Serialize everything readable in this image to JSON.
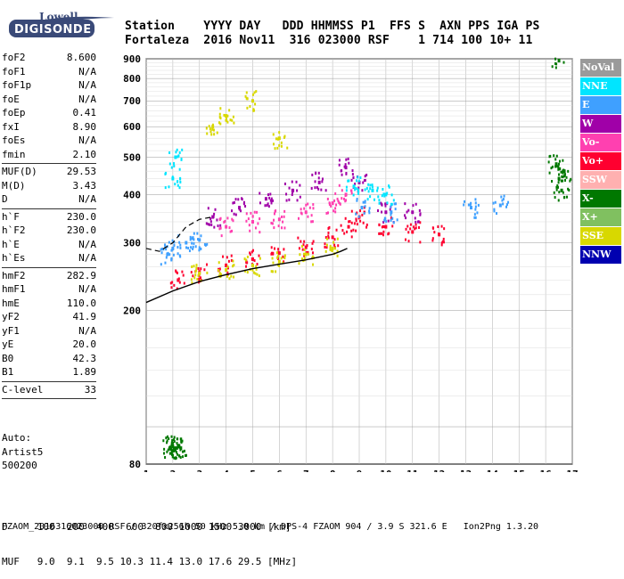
{
  "logo": {
    "line1": "Lowell",
    "line2": "DIGISONDE"
  },
  "header": {
    "labels": "Station    YYYY DAY   DDD HHMMSS P1  FFS S  AXN PPS IGA PS",
    "values": "Fortaleza  2016 Nov11  316 023000 RSF    1 714 100 10+ 11"
  },
  "params": {
    "group1": [
      {
        "name": "foF2",
        "value": "8.600"
      },
      {
        "name": "foF1",
        "value": "N/A"
      },
      {
        "name": "foF1p",
        "value": "N/A"
      },
      {
        "name": "foE",
        "value": "N/A"
      },
      {
        "name": "foEp",
        "value": "0.41"
      },
      {
        "name": "fxI",
        "value": "8.90"
      },
      {
        "name": "foEs",
        "value": "N/A"
      },
      {
        "name": "fmin",
        "value": "2.10"
      }
    ],
    "group2": [
      {
        "name": "MUF(D)",
        "value": "29.53"
      },
      {
        "name": "M(D)",
        "value": "3.43"
      },
      {
        "name": "D",
        "value": "N/A"
      }
    ],
    "group3": [
      {
        "name": "h`F",
        "value": "230.0"
      },
      {
        "name": "h`F2",
        "value": "230.0"
      },
      {
        "name": "h`E",
        "value": "N/A"
      },
      {
        "name": "h`Es",
        "value": "N/A"
      }
    ],
    "group4": [
      {
        "name": "hmF2",
        "value": "282.9"
      },
      {
        "name": "hmF1",
        "value": "N/A"
      },
      {
        "name": "hmE",
        "value": "110.0"
      },
      {
        "name": "yF2",
        "value": "41.9"
      },
      {
        "name": "yF1",
        "value": "N/A"
      },
      {
        "name": "yE",
        "value": "20.0"
      },
      {
        "name": "B0",
        "value": "42.3"
      },
      {
        "name": "B1",
        "value": "1.89"
      }
    ],
    "group5": [
      {
        "name": "C-level",
        "value": "33"
      }
    ]
  },
  "auto": {
    "line1": "Auto:",
    "line2": "Artist5",
    "line3": "500200"
  },
  "legend": [
    {
      "label": "NoVal",
      "color": "#9a9a9a"
    },
    {
      "label": "NNE",
      "color": "#00e5ff"
    },
    {
      "label": "E",
      "color": "#3fa0ff"
    },
    {
      "label": "W",
      "color": "#a000a8"
    },
    {
      "label": "Vo-",
      "color": "#ff40b0"
    },
    {
      "label": "Vo+",
      "color": "#ff0030"
    },
    {
      "label": "SSW",
      "color": "#ffb0b0"
    },
    {
      "label": "X-",
      "color": "#007800"
    },
    {
      "label": "X+",
      "color": "#80c060"
    },
    {
      "label": "SSE",
      "color": "#d8d800"
    },
    {
      "label": "NNW",
      "color": "#0000b0"
    }
  ],
  "bottom": {
    "d_row": "D     100  200  400  600  800 1000 1500 3000 [km]",
    "muf_row": "MUF   9.0  9.1  9.5 10.3 11.4 13.0 17.6 29.5 [MHz]"
  },
  "footer": "FZAOM_2016316023000.RSF / 320fx256h 50 kHz 5.0 km / DPS-4 FZAOM 904 / 3.9 S 321.6 E   Ion2Png 1.3.20",
  "chart_data": {
    "type": "scatter",
    "title": "",
    "xlabel": "",
    "ylabel": "",
    "xlim": [
      1,
      17
    ],
    "ylim": [
      80,
      900
    ],
    "y_scale": "log",
    "grid": true,
    "legend_position": "right",
    "x_ticks": [
      1,
      2,
      3,
      4,
      5,
      6,
      7,
      8,
      9,
      10,
      11,
      12,
      13,
      14,
      15,
      16,
      17
    ],
    "y_ticks": [
      80,
      200,
      300,
      400,
      500,
      600,
      700,
      800,
      900
    ],
    "series": [
      {
        "name": "X-",
        "color": "#007800",
        "points": [
          [
            1.9,
            88
          ],
          [
            2.0,
            89
          ],
          [
            2.1,
            88
          ],
          [
            2.2,
            89
          ],
          [
            2.3,
            88
          ],
          [
            16.4,
            480
          ],
          [
            16.5,
            440
          ],
          [
            16.6,
            410
          ],
          [
            16.7,
            460
          ],
          [
            16.5,
            890
          ]
        ]
      },
      {
        "name": "Vo+",
        "color": "#ff0030",
        "points": [
          [
            2.2,
            240
          ],
          [
            3.0,
            252
          ],
          [
            4.0,
            262
          ],
          [
            5.0,
            272
          ],
          [
            6.0,
            282
          ],
          [
            7.0,
            292
          ],
          [
            8.0,
            310
          ],
          [
            8.6,
            330
          ],
          [
            9.0,
            350
          ],
          [
            10.0,
            330
          ],
          [
            11.0,
            320
          ],
          [
            12.0,
            315
          ]
        ]
      },
      {
        "name": "W",
        "color": "#a000a8",
        "points": [
          [
            3.5,
            350
          ],
          [
            4.5,
            370
          ],
          [
            5.5,
            390
          ],
          [
            6.5,
            410
          ],
          [
            7.5,
            430
          ],
          [
            8.5,
            470
          ],
          [
            9.0,
            430
          ],
          [
            10.0,
            360
          ],
          [
            11.0,
            360
          ]
        ]
      },
      {
        "name": "E",
        "color": "#3fa0ff",
        "points": [
          [
            1.8,
            280
          ],
          [
            2.0,
            290
          ],
          [
            2.5,
            300
          ],
          [
            3.0,
            305
          ],
          [
            9.1,
            370
          ],
          [
            10.2,
            360
          ],
          [
            13.2,
            370
          ],
          [
            14.3,
            375
          ]
        ]
      },
      {
        "name": "SSE",
        "color": "#d8d800",
        "points": [
          [
            3.0,
            250
          ],
          [
            4.0,
            255
          ],
          [
            5.0,
            262
          ],
          [
            6.0,
            268
          ],
          [
            7.0,
            280
          ],
          [
            8.0,
            290
          ],
          [
            3.5,
            600
          ],
          [
            4.0,
            640
          ],
          [
            5.0,
            700
          ],
          [
            6.0,
            560
          ]
        ]
      },
      {
        "name": "NNE",
        "color": "#00e5ff",
        "points": [
          [
            2.0,
            440
          ],
          [
            2.1,
            500
          ],
          [
            8.8,
            420
          ],
          [
            9.5,
            410
          ],
          [
            10.0,
            400
          ]
        ]
      },
      {
        "name": "Vo-",
        "color": "#ff40b0",
        "points": [
          [
            4.0,
            330
          ],
          [
            5.0,
            340
          ],
          [
            6.0,
            345
          ],
          [
            7.0,
            360
          ],
          [
            8.0,
            380
          ],
          [
            8.5,
            400
          ]
        ]
      }
    ],
    "trace": [
      [
        1.0,
        210
      ],
      [
        2.0,
        225
      ],
      [
        3.0,
        238
      ],
      [
        4.0,
        248
      ],
      [
        5.0,
        257
      ],
      [
        6.0,
        264
      ],
      [
        7.0,
        271
      ],
      [
        8.0,
        280
      ],
      [
        8.3,
        285
      ],
      [
        8.55,
        290
      ]
    ],
    "dashed_trace": [
      [
        1.0,
        290
      ],
      [
        1.5,
        285
      ],
      [
        2.0,
        300
      ],
      [
        2.5,
        330
      ],
      [
        3.0,
        345
      ],
      [
        3.5,
        350
      ]
    ]
  }
}
